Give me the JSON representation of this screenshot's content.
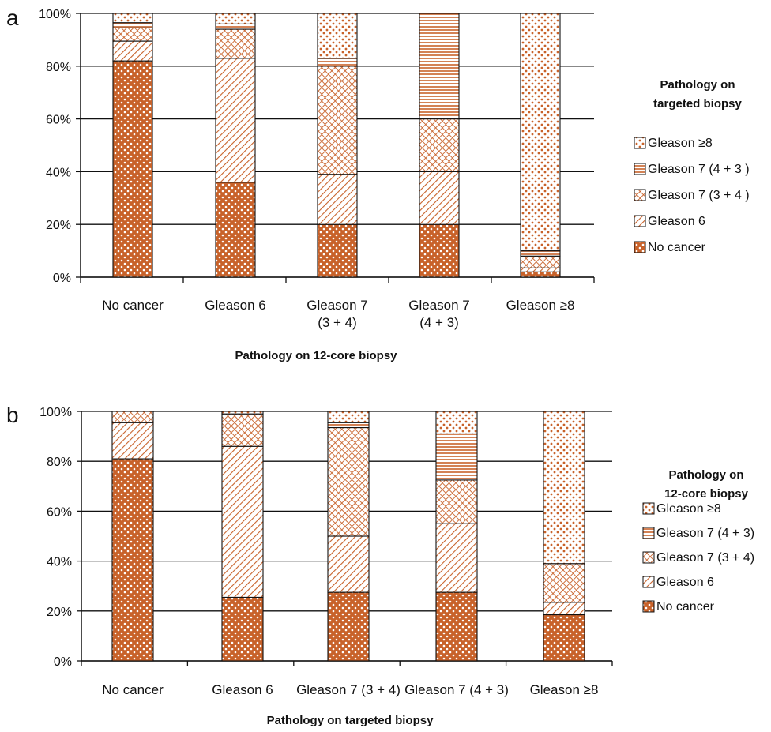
{
  "colors": {
    "fill": "#c8622a",
    "hatch": "#c8622a",
    "background": "#ffffff",
    "axis": "#111111"
  },
  "chart_data": [
    {
      "type": "bar",
      "stacked": true,
      "panel_label": "a",
      "categories": [
        "No cancer",
        "Gleason 6",
        "Gleason 7 (3 + 4)",
        "Gleason 7 (4 + 3)",
        "Gleason ≥8"
      ],
      "category_lines": [
        [
          "No cancer"
        ],
        [
          "Gleason 6"
        ],
        [
          "Gleason 7",
          "(3 + 4)"
        ],
        [
          "Gleason 7",
          "(4 + 3)"
        ],
        [
          "Gleason ≥8"
        ]
      ],
      "series": [
        {
          "name": "No cancer",
          "pattern": "dots-white",
          "values": [
            82,
            36,
            20,
            20,
            2
          ]
        },
        {
          "name": "Gleason 6",
          "pattern": "diag-back",
          "values": [
            7.5,
            47,
            19,
            20,
            1.5
          ]
        },
        {
          "name": "Gleason 7 (3 + 4)",
          "pattern": "cross",
          "values": [
            5,
            11,
            41,
            20,
            4.5
          ]
        },
        {
          "name": "Gleason 7 (4 + 3)",
          "pattern": "horiz",
          "values": [
            2,
            2,
            3,
            40,
            2
          ]
        },
        {
          "name": "Gleason ≥8",
          "pattern": "dots-orange",
          "values": [
            3.5,
            4,
            17,
            0,
            90
          ]
        }
      ],
      "y_ticks": [
        "0%",
        "20%",
        "40%",
        "60%",
        "80%",
        "100%"
      ],
      "ylim": [
        0,
        100
      ],
      "grid": true,
      "xlabel": "Pathology on 12-core biopsy",
      "legend_title": [
        "Pathology on",
        "targeted biopsy"
      ],
      "legend_labels": [
        "Gleason ≥8",
        "Gleason 7 (4 + 3 )",
        "Gleason 7 (3 + 4 )",
        "Gleason 6",
        "No cancer"
      ],
      "legend_placement": "right"
    },
    {
      "type": "bar",
      "stacked": true,
      "panel_label": "b",
      "categories": [
        "No cancer",
        "Gleason 6",
        "Gleason 7 (3 + 4)",
        "Gleason 7 (4 + 3)",
        "Gleason ≥8"
      ],
      "category_lines": [
        [
          "No cancer"
        ],
        [
          "Gleason 6"
        ],
        [
          "Gleason 7 (3 + 4)"
        ],
        [
          "Gleason 7 (4 + 3)"
        ],
        [
          "Gleason ≥8"
        ]
      ],
      "series": [
        {
          "name": "No cancer",
          "pattern": "dots-white",
          "values": [
            81,
            25.5,
            27.5,
            27.5,
            18.5
          ]
        },
        {
          "name": "Gleason 6",
          "pattern": "diag-back",
          "values": [
            14.5,
            60.5,
            22.5,
            27.5,
            5
          ]
        },
        {
          "name": "Gleason 7 (3 + 4)",
          "pattern": "cross",
          "values": [
            4.5,
            13,
            43.5,
            17.5,
            15.5
          ]
        },
        {
          "name": "Gleason 7 (4 + 3)",
          "pattern": "horiz",
          "values": [
            0,
            0,
            2,
            18.5,
            0
          ]
        },
        {
          "name": "Gleason ≥8",
          "pattern": "dots-orange",
          "values": [
            0,
            1,
            4.5,
            9,
            61
          ]
        }
      ],
      "y_ticks": [
        "0%",
        "20%",
        "40%",
        "60%",
        "80%",
        "100%"
      ],
      "ylim": [
        0,
        100
      ],
      "grid": true,
      "xlabel": "Pathology on targeted biopsy",
      "legend_title": [
        "Pathology on",
        "12-core biopsy"
      ],
      "legend_labels": [
        "Gleason ≥8",
        "Gleason 7 (4 + 3)",
        "Gleason 7 (3 + 4)",
        "Gleason 6",
        "No cancer"
      ],
      "legend_placement": "right"
    }
  ]
}
